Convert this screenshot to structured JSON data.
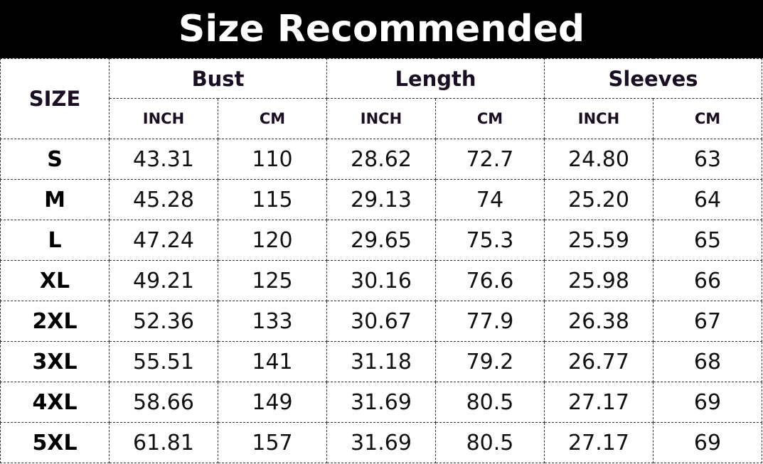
{
  "title": "Size Recommended",
  "header": {
    "size": "SIZE",
    "groups": [
      "Bust",
      "Length",
      "Sleeves"
    ],
    "units": [
      "INCH",
      "CM",
      "INCH",
      "CM",
      "INCH",
      "CM"
    ]
  },
  "rows": [
    [
      "S",
      "43.31",
      "110",
      "28.62",
      "72.7",
      "24.80",
      "63"
    ],
    [
      "M",
      "45.28",
      "115",
      "29.13",
      "74",
      "25.20",
      "64"
    ],
    [
      "L",
      "47.24",
      "120",
      "29.65",
      "75.3",
      "25.59",
      "65"
    ],
    [
      "XL",
      "49.21",
      "125",
      "30.16",
      "76.6",
      "25.98",
      "66"
    ],
    [
      "2XL",
      "52.36",
      "133",
      "30.67",
      "77.9",
      "26.38",
      "67"
    ],
    [
      "3XL",
      "55.51",
      "141",
      "31.18",
      "79.2",
      "26.77",
      "68"
    ],
    [
      "4XL",
      "58.66",
      "149",
      "31.69",
      "80.5",
      "27.17",
      "69"
    ],
    [
      "5XL",
      "61.81",
      "157",
      "31.69",
      "80.5",
      "27.17",
      "69"
    ]
  ]
}
